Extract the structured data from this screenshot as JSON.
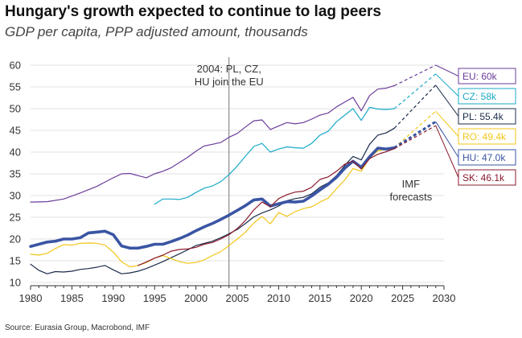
{
  "title": "Hungary's growth expected to continue to lag peers",
  "subtitle": "GDP per capita, PPP adjusted amount, thousands",
  "source": "Source: Eurasia Group, Macrobond, IMF",
  "chart_data": {
    "type": "line",
    "xlim": [
      1980,
      2030
    ],
    "ylim": [
      10,
      60
    ],
    "xticks": [
      "1980",
      "1985",
      "1990",
      "1995",
      "2000",
      "2005",
      "2010",
      "2015",
      "2020",
      "2025",
      "2030"
    ],
    "yticks": [
      "10",
      "15",
      "20",
      "25",
      "30",
      "35",
      "40",
      "45",
      "50",
      "55",
      "60"
    ],
    "grid": "horizontal",
    "eu_accession": {
      "year": 2004,
      "label_line1": "2004: PL, CZ,",
      "label_line2": "HU join the EU"
    },
    "forecast_label_line1": "IMF",
    "forecast_label_line2": "forecasts",
    "series": [
      {
        "name": "EU",
        "label": "EU: 60k",
        "color": "#6a3d9a",
        "width": 1.2,
        "x": [
          1980,
          1982,
          1984,
          1986,
          1988,
          1990,
          1991,
          1992,
          1993,
          1994,
          1995,
          1996,
          1997,
          1998,
          1999,
          2000,
          2001,
          2002,
          2003,
          2004,
          2005,
          2006,
          2007,
          2008,
          2009,
          2010,
          2011,
          2012,
          2013,
          2014,
          2015,
          2016,
          2017,
          2018,
          2019,
          2020,
          2021,
          2022,
          2023,
          2024
        ],
        "y": [
          28.5,
          28.6,
          29.2,
          30.6,
          32.1,
          34.1,
          35.0,
          35.1,
          34.6,
          34.1,
          35.0,
          35.6,
          36.4,
          37.6,
          38.8,
          40.2,
          41.4,
          41.8,
          42.2,
          43.4,
          44.3,
          45.8,
          47.2,
          47.4,
          45.2,
          46.0,
          46.8,
          46.5,
          46.8,
          47.6,
          48.5,
          49.0,
          50.4,
          51.5,
          52.6,
          49.5,
          53.0,
          54.5,
          54.7,
          55.3
        ],
        "forecast": {
          "x": [
            2024,
            2029
          ],
          "y": [
            55.3,
            60.0
          ]
        }
      },
      {
        "name": "CZ",
        "label": "CZ: 58k",
        "color": "#1ba9c8",
        "width": 1.2,
        "x": [
          1995,
          1996,
          1997,
          1998,
          1999,
          2000,
          2001,
          2002,
          2003,
          2004,
          2005,
          2006,
          2007,
          2008,
          2009,
          2010,
          2011,
          2012,
          2013,
          2014,
          2015,
          2016,
          2017,
          2018,
          2019,
          2020,
          2021,
          2022,
          2023,
          2024
        ],
        "y": [
          28.0,
          29.2,
          29.2,
          29.1,
          29.6,
          30.7,
          31.7,
          32.2,
          33.2,
          34.8,
          36.8,
          39.1,
          41.3,
          42.0,
          40.0,
          40.7,
          41.2,
          41.0,
          40.9,
          42.0,
          43.9,
          44.8,
          47.0,
          48.5,
          50.0,
          47.3,
          50.3,
          49.9,
          49.8,
          50.0
        ],
        "forecast": {
          "x": [
            2024,
            2029
          ],
          "y": [
            50.0,
            58.0
          ]
        }
      },
      {
        "name": "PL",
        "label": "PL: 55.4k",
        "color": "#1b2c4a",
        "width": 1.2,
        "x": [
          1980,
          1981,
          1982,
          1983,
          1984,
          1985,
          1986,
          1987,
          1988,
          1989,
          1990,
          1991,
          1992,
          1993,
          1994,
          1995,
          1996,
          1997,
          1998,
          1999,
          2000,
          2001,
          2002,
          2003,
          2004,
          2005,
          2006,
          2007,
          2008,
          2009,
          2010,
          2011,
          2012,
          2013,
          2014,
          2015,
          2016,
          2017,
          2018,
          2019,
          2020,
          2021,
          2022,
          2023,
          2024
        ],
        "y": [
          14.2,
          12.8,
          12.0,
          12.5,
          12.4,
          12.6,
          13.0,
          13.2,
          13.5,
          13.9,
          12.9,
          12.0,
          12.2,
          12.6,
          13.2,
          14.0,
          14.8,
          15.7,
          16.6,
          17.5,
          18.5,
          19.0,
          19.5,
          20.3,
          21.2,
          22.2,
          23.6,
          25.1,
          26.0,
          26.7,
          27.6,
          28.8,
          29.3,
          29.6,
          30.4,
          31.9,
          32.9,
          34.6,
          36.9,
          39.0,
          38.2,
          41.8,
          43.9,
          44.4,
          45.5
        ],
        "forecast": {
          "x": [
            2024,
            2029
          ],
          "y": [
            45.5,
            55.4
          ]
        }
      },
      {
        "name": "RO",
        "label": "RO: 49.4k",
        "color": "#f2c617",
        "width": 1.2,
        "x": [
          1980,
          1981,
          1982,
          1983,
          1984,
          1985,
          1986,
          1987,
          1988,
          1989,
          1990,
          1991,
          1992,
          1993,
          1994,
          1995,
          1996,
          1997,
          1998,
          1999,
          2000,
          2001,
          2002,
          2003,
          2004,
          2005,
          2006,
          2007,
          2008,
          2009,
          2010,
          2011,
          2012,
          2013,
          2014,
          2015,
          2016,
          2017,
          2018,
          2019,
          2020,
          2021,
          2022,
          2023,
          2024
        ],
        "y": [
          16.5,
          16.3,
          16.7,
          17.8,
          18.7,
          18.6,
          19.0,
          19.1,
          19.0,
          18.6,
          17.0,
          14.8,
          13.6,
          13.9,
          14.6,
          15.6,
          16.2,
          15.5,
          14.8,
          14.4,
          14.6,
          15.2,
          16.2,
          17.1,
          18.5,
          20.0,
          21.6,
          23.7,
          25.2,
          23.5,
          26.1,
          25.2,
          26.3,
          27.0,
          27.4,
          28.5,
          29.4,
          31.6,
          33.6,
          36.2,
          35.6,
          38.7,
          40.3,
          40.6,
          41.0
        ],
        "forecast": {
          "x": [
            2024,
            2029
          ],
          "y": [
            41.0,
            49.4
          ]
        }
      },
      {
        "name": "HU",
        "label": "HU: 47.0k",
        "color": "#3a55a3",
        "width": 3.6,
        "x": [
          1980,
          1981,
          1982,
          1983,
          1984,
          1985,
          1986,
          1987,
          1988,
          1989,
          1990,
          1991,
          1992,
          1993,
          1994,
          1995,
          1996,
          1997,
          1998,
          1999,
          2000,
          2001,
          2002,
          2003,
          2004,
          2005,
          2006,
          2007,
          2008,
          2009,
          2010,
          2011,
          2012,
          2013,
          2014,
          2015,
          2016,
          2017,
          2018,
          2019,
          2020,
          2021,
          2022,
          2023,
          2024
        ],
        "y": [
          18.3,
          18.8,
          19.3,
          19.5,
          20.0,
          20.0,
          20.3,
          21.4,
          21.6,
          21.8,
          21.0,
          18.4,
          17.9,
          17.9,
          18.3,
          18.8,
          18.8,
          19.4,
          20.1,
          20.9,
          21.9,
          22.8,
          23.6,
          24.5,
          25.5,
          26.6,
          27.7,
          29.0,
          29.2,
          27.6,
          28.1,
          28.6,
          28.5,
          28.7,
          29.9,
          31.3,
          32.6,
          34.2,
          36.3,
          37.9,
          36.5,
          38.9,
          40.9,
          40.7,
          41.0
        ],
        "forecast": {
          "x": [
            2024,
            2029
          ],
          "y": [
            41.0,
            47.0
          ]
        }
      },
      {
        "name": "SK",
        "label": "SK: 46.1k",
        "color": "#8b1a2c",
        "width": 1.2,
        "x": [
          1993,
          1994,
          1995,
          1996,
          1997,
          1998,
          1999,
          2000,
          2001,
          2002,
          2003,
          2004,
          2005,
          2006,
          2007,
          2008,
          2009,
          2010,
          2011,
          2012,
          2013,
          2014,
          2015,
          2016,
          2017,
          2018,
          2019,
          2020,
          2021,
          2022,
          2023,
          2024
        ],
        "y": [
          13.9,
          14.7,
          15.6,
          16.3,
          17.2,
          17.6,
          17.7,
          18.1,
          18.8,
          19.2,
          20.0,
          21.0,
          22.4,
          24.3,
          26.7,
          28.5,
          27.4,
          29.3,
          30.2,
          30.8,
          31.0,
          31.9,
          33.7,
          34.3,
          35.6,
          37.2,
          37.9,
          36.1,
          38.5,
          39.5,
          40.1,
          40.8
        ],
        "forecast": {
          "x": [
            2024,
            2029
          ],
          "y": [
            40.8,
            46.1
          ]
        }
      }
    ]
  }
}
